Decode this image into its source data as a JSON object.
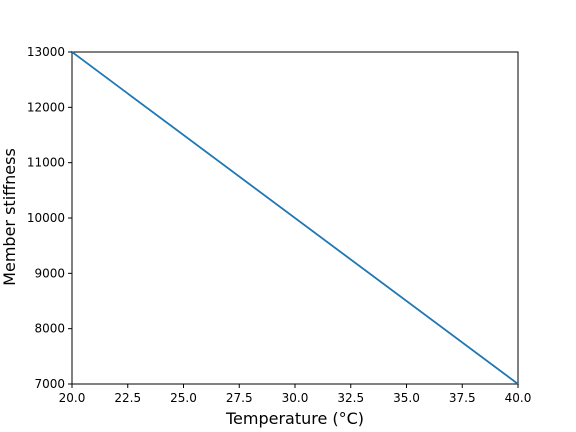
{
  "chart_data": {
    "type": "line",
    "title": "",
    "xlabel": "Temperature (°C)",
    "ylabel": "Member stiffness",
    "xlim": [
      20.0,
      40.0
    ],
    "ylim": [
      7000,
      13000
    ],
    "xticks": [
      20.0,
      22.5,
      25.0,
      27.5,
      30.0,
      32.5,
      35.0,
      37.5,
      40.0
    ],
    "xtick_labels": [
      "20.0",
      "22.5",
      "25.0",
      "27.5",
      "30.0",
      "32.5",
      "35.0",
      "37.5",
      "40.0"
    ],
    "yticks": [
      7000,
      8000,
      9000,
      10000,
      11000,
      12000,
      13000
    ],
    "ytick_labels": [
      "7000",
      "8000",
      "9000",
      "10000",
      "11000",
      "12000",
      "13000"
    ],
    "grid": false,
    "series": [
      {
        "x": [
          20.0,
          40.0
        ],
        "y": [
          13000,
          7000
        ],
        "color": "#1f77b4"
      }
    ]
  }
}
